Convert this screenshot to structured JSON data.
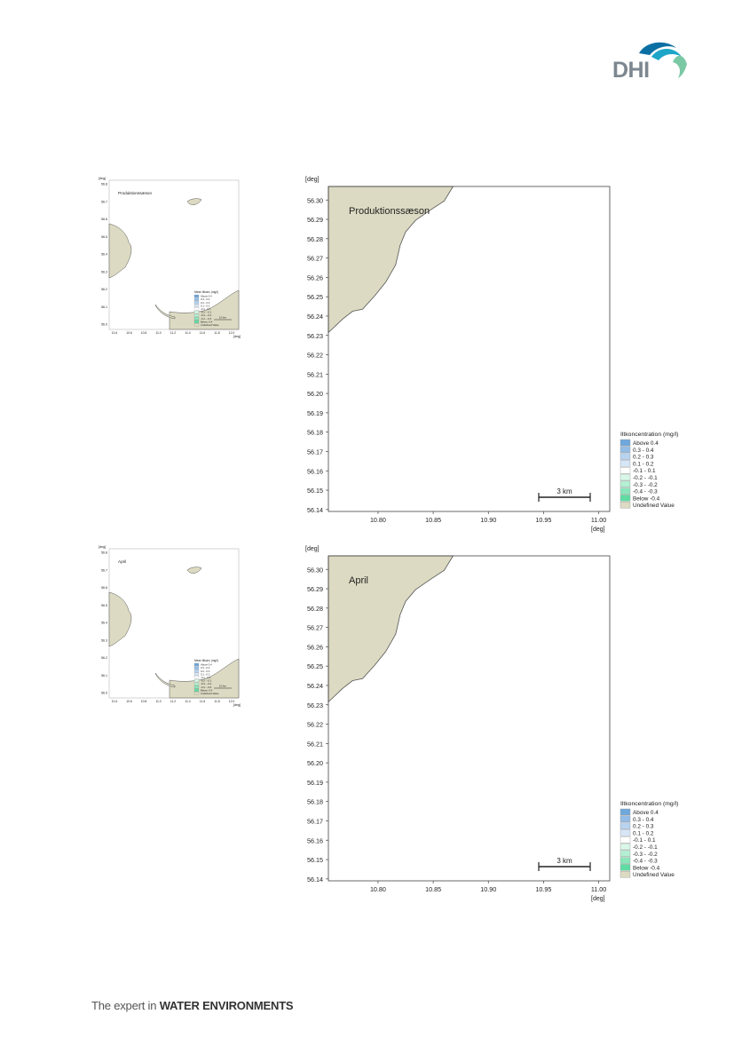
{
  "brand": {
    "logo_text": "DHI",
    "logo_colors": [
      "#0b6fa4",
      "#1ea6c9",
      "#7bc8a4"
    ],
    "footer_prefix": "The expert in ",
    "footer_bold": "WATER ENVIRONMENTS"
  },
  "axis": {
    "unit_label": "[deg]",
    "x_ticks": [
      "10.80",
      "10.85",
      "10.90",
      "10.95",
      "11.00"
    ],
    "y_ticks": [
      "56.30",
      "56.29",
      "56.28",
      "56.27",
      "56.26",
      "56.25",
      "56.24",
      "56.23",
      "56.22",
      "56.21",
      "56.20",
      "56.19",
      "56.18",
      "56.17",
      "56.16",
      "56.15",
      "56.14"
    ],
    "xlim": [
      10.755,
      11.01
    ],
    "ylim": [
      56.139,
      56.307
    ]
  },
  "scale_bar": {
    "label": "3 km"
  },
  "legend": {
    "title": "Iltkoncentration (mg/l)",
    "items": [
      {
        "label": "Above  0.4",
        "color": "#6fa8dc"
      },
      {
        "label": "0.3 -  0.4",
        "color": "#93bde6"
      },
      {
        "label": "0.2 -  0.3",
        "color": "#b7d3f0"
      },
      {
        "label": "0.1 -  0.2",
        "color": "#d6e6f7"
      },
      {
        "label": "-0.1 -  0.1",
        "color": "#ffffff"
      },
      {
        "label": "-0.2 - -0.1",
        "color": "#d9f7e8"
      },
      {
        "label": "-0.3 - -0.2",
        "color": "#b3efd2"
      },
      {
        "label": "-0.4 - -0.3",
        "color": "#8ae6bb"
      },
      {
        "label": "Below -0.4",
        "color": "#5fdca3"
      },
      {
        "label": "Undefined Value",
        "color": "#dcdac2"
      }
    ]
  },
  "land_color": "#dcdac2",
  "coast": [
    [
      10.755,
      56.2315
    ],
    [
      10.768,
      56.2385
    ],
    [
      10.777,
      56.2425
    ],
    [
      10.786,
      56.2435
    ],
    [
      10.797,
      56.2505
    ],
    [
      10.807,
      56.2575
    ],
    [
      10.816,
      56.2665
    ],
    [
      10.82,
      56.2765
    ],
    [
      10.825,
      56.2835
    ],
    [
      10.834,
      56.2895
    ],
    [
      10.848,
      56.295
    ],
    [
      10.86,
      56.2995
    ],
    [
      10.868,
      56.307
    ]
  ],
  "inset": {
    "y_ticks": [
      "56.8",
      "56.7",
      "56.6",
      "56.5",
      "56.4",
      "56.3",
      "56.2",
      "56.1",
      "56.0"
    ],
    "x_ticks": [
      "10.4",
      "10.6",
      "10.8",
      "11.0",
      "11.2",
      "11.4",
      "11.6",
      "11.8",
      "12.0"
    ],
    "legend_title": "Mean iltkonc (mg/l)",
    "legend_items": [
      "Above 0.4",
      "0.3 - 0.4",
      "0.2 - 0.3",
      "0.1 - 0.2",
      "-0.1 - 0.1",
      "-0.2 - -0.1",
      "-0.3 - -0.2",
      "-0.4 - -0.3",
      "Below -0.4",
      "Undefined Value"
    ],
    "scale_label": "10 km"
  },
  "panels": [
    {
      "title": "Produktionssæson",
      "inset_title": "Produktionssæson"
    },
    {
      "title": "April",
      "inset_title": "April"
    }
  ]
}
